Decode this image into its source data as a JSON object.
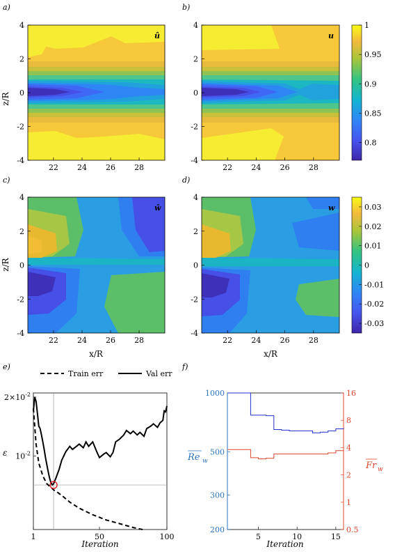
{
  "chart_data": [
    {
      "panel": "a)",
      "type": "heatmap",
      "annotation": "û",
      "xlabel": "",
      "ylabel": "z/R",
      "xlim": [
        20.2,
        29.8
      ],
      "ylim": [
        -4,
        4
      ],
      "xticks": [
        22,
        24,
        26,
        28
      ],
      "yticks": [
        4,
        2,
        0,
        -2,
        -4
      ],
      "levels": [
        {
          "z": 4.0,
          "value": 0.975
        },
        {
          "z": 2.0,
          "value": 0.97
        },
        {
          "z": 1.4,
          "value": 0.965
        },
        {
          "z": 1.0,
          "value": 0.95
        },
        {
          "z": 0.8,
          "value": 0.92
        },
        {
          "z": 0.6,
          "value": 0.89
        },
        {
          "z": 0.4,
          "value": 0.85
        },
        {
          "z": 0.2,
          "value": 0.81
        },
        {
          "z": 0.0,
          "value": 0.78
        }
      ]
    },
    {
      "panel": "b)",
      "type": "heatmap",
      "annotation": "u",
      "xlabel": "",
      "ylabel": "",
      "xlim": [
        20.2,
        29.8
      ],
      "ylim": [
        -4,
        4
      ],
      "xticks": [
        22,
        24,
        26,
        28
      ],
      "yticks": [
        4,
        2,
        0,
        -2,
        -4
      ],
      "colorbar": {
        "min": 0.77,
        "max": 1.0,
        "ticks": [
          "1",
          "0.95",
          "0.9",
          "0.85",
          "0.8"
        ]
      }
    },
    {
      "panel": "c)",
      "type": "heatmap",
      "annotation": "ŵ",
      "xlabel": "x/R",
      "ylabel": "z/R",
      "xlim": [
        20.2,
        29.8
      ],
      "ylim": [
        -4,
        4
      ],
      "xticks": [
        22,
        24,
        26,
        28
      ],
      "yticks": [
        4,
        2,
        0,
        -2,
        -4
      ]
    },
    {
      "panel": "d)",
      "type": "heatmap",
      "annotation": "w",
      "xlabel": "x/R",
      "ylabel": "",
      "xlim": [
        20.2,
        29.8
      ],
      "ylim": [
        -4,
        4
      ],
      "xticks": [
        22,
        24,
        26,
        28
      ],
      "yticks": [
        4,
        2,
        0,
        -2,
        -4
      ],
      "colorbar": {
        "min": -0.035,
        "max": 0.035,
        "ticks": [
          "0.03",
          "0.02",
          "0.01",
          "0",
          "-0.01",
          "-0.02",
          "-0.03"
        ]
      }
    },
    {
      "panel": "e)",
      "type": "line",
      "xlabel": "Iteration",
      "ylabel": "ε",
      "xlim": [
        1,
        100
      ],
      "ylim": [
        0.0042,
        0.021
      ],
      "yscale": "log",
      "xticks": [
        "1",
        "50",
        "100"
      ],
      "yticks": [
        {
          "base": "2×10",
          "exp": "-2"
        },
        {
          "base": "10",
          "exp": "-2"
        }
      ],
      "legend": "top",
      "series": [
        {
          "name": "Train err",
          "style": "dashed",
          "x": [
            1,
            3,
            5,
            8,
            11,
            14,
            16,
            19,
            23,
            28,
            35,
            45,
            55,
            65,
            75,
            82
          ],
          "y": [
            0.0175,
            0.0115,
            0.0092,
            0.0079,
            0.0072,
            0.0069,
            0.0067,
            0.0065,
            0.0062,
            0.0058,
            0.0054,
            0.005,
            0.0047,
            0.0045,
            0.0043,
            0.0042
          ]
        },
        {
          "name": "Val err",
          "style": "solid",
          "x": [
            1,
            2,
            3,
            4,
            5,
            6,
            7,
            8,
            9,
            10,
            11,
            12,
            13,
            14,
            15,
            16,
            18,
            20,
            22,
            25,
            28,
            30,
            33,
            35,
            38,
            40,
            42,
            45,
            48,
            50,
            53,
            55,
            58,
            60,
            62,
            65,
            68,
            70,
            73,
            75,
            78,
            80,
            83,
            85,
            88,
            90,
            93,
            95,
            97,
            98,
            99,
            100
          ],
          "y": [
            0.017,
            0.02,
            0.019,
            0.0165,
            0.0142,
            0.0138,
            0.0128,
            0.0118,
            0.0108,
            0.0098,
            0.009,
            0.0083,
            0.0077,
            0.0073,
            0.0071,
            0.0072,
            0.0078,
            0.0085,
            0.0095,
            0.0105,
            0.0112,
            0.0108,
            0.0112,
            0.0115,
            0.011,
            0.0118,
            0.0112,
            0.0118,
            0.0105,
            0.0098,
            0.0102,
            0.0104,
            0.0099,
            0.0104,
            0.0118,
            0.0122,
            0.0128,
            0.0135,
            0.013,
            0.0134,
            0.0128,
            0.0132,
            0.0126,
            0.0138,
            0.0142,
            0.0146,
            0.014,
            0.0148,
            0.0152,
            0.017,
            0.0168,
            0.018
          ]
        }
      ],
      "marker": {
        "x": 16,
        "y": 0.0071
      }
    },
    {
      "panel": "f)",
      "type": "line",
      "xlabel": "Iteration",
      "ylabel_left": "Re",
      "ylabel_left_sub": "w",
      "ylabel_right": "Fr",
      "ylabel_right_sub": "w",
      "xlim": [
        1,
        16
      ],
      "xticks": [
        "5",
        "10",
        "15"
      ],
      "left_axis": {
        "scale": "log",
        "lim": [
          200,
          1000
        ],
        "ticks": [
          "1000",
          "500",
          "300",
          "200"
        ],
        "color": "#2a73c0"
      },
      "right_axis": {
        "scale": "log",
        "lim": [
          0.5,
          16
        ],
        "ticks": [
          "16",
          "8",
          "4",
          "2",
          "1",
          "0.5"
        ],
        "color": "#e0442b"
      },
      "series": [
        {
          "name": "",
          "axis": "left",
          "color": "#1f2fd0",
          "x": [
            1,
            3,
            4,
            5,
            6,
            7,
            8,
            9,
            10,
            11,
            12,
            13,
            14,
            15,
            16
          ],
          "y": [
            1000,
            1000,
            770,
            770,
            765,
            650,
            645,
            640,
            640,
            640,
            625,
            630,
            640,
            655,
            660
          ]
        },
        {
          "name": "",
          "axis": "right",
          "color": "#e0442b",
          "x": [
            1,
            2,
            3,
            4,
            5,
            6,
            7,
            8,
            9,
            10,
            11,
            12,
            13,
            14,
            15,
            16
          ],
          "y": [
            3.8,
            3.8,
            3.8,
            3.1,
            3.0,
            3.05,
            3.4,
            3.4,
            3.4,
            3.4,
            3.4,
            3.4,
            3.4,
            3.5,
            3.7,
            3.8
          ]
        }
      ]
    }
  ]
}
